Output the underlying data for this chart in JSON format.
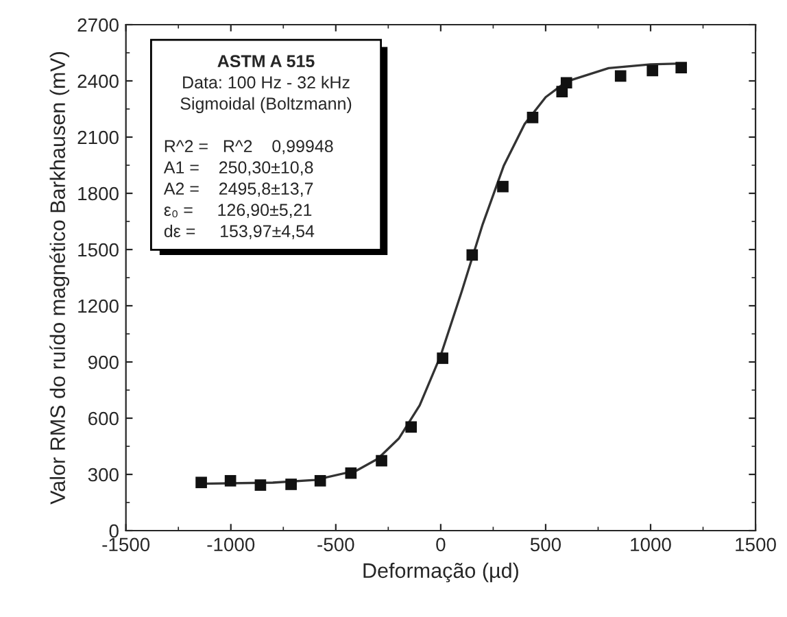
{
  "chart_data": {
    "type": "scatter",
    "xlabel": "Deformação (µd)",
    "ylabel": "Valor RMS do ruído magnético Barkhausen (mV)",
    "xlim": [
      -1500,
      1500
    ],
    "xticks": [
      -1500,
      -1000,
      -500,
      0,
      500,
      1000,
      1500
    ],
    "ylim": [
      0,
      2700
    ],
    "yticks": [
      0,
      300,
      600,
      900,
      1200,
      1500,
      1800,
      2100,
      2400,
      2700
    ],
    "grid": false,
    "legend": false,
    "series": [
      {
        "marker": "square",
        "color": "#111111",
        "x": [
          -1141,
          -1002,
          -859,
          -713,
          -574,
          -428,
          -282,
          -141,
          9,
          150,
          296,
          438,
          578,
          599,
          857,
          1009,
          1146
        ],
        "values": [
          257,
          266,
          243,
          247,
          266,
          307,
          373,
          553,
          920,
          1471,
          1836,
          2205,
          2343,
          2390,
          2426,
          2455,
          2471
        ]
      },
      {
        "type": "line",
        "marker": "none",
        "line_style": "solid",
        "color": "#333333",
        "x": [
          -1150,
          -800,
          -600,
          -400,
          -300,
          -200,
          -100,
          0,
          100,
          200,
          300,
          400,
          500,
          600,
          800,
          1000,
          1150
        ],
        "values": [
          250,
          256,
          270,
          321,
          383,
          491,
          669,
          935,
          1276,
          1635,
          1946,
          2170,
          2313,
          2397,
          2468,
          2488,
          2493
        ]
      }
    ],
    "annotations": [
      "ASTM A 515",
      "Data: 100 Hz - 32 kHz",
      "Sigmoidal (Boltzmann)",
      "R^2 =   R^2    0,99948",
      "A1 =    250,30±10,8",
      "A2 =    2495,8±13,7",
      "ε₀ =     126,90±5,21",
      "dε =     153,97±4,54"
    ]
  }
}
